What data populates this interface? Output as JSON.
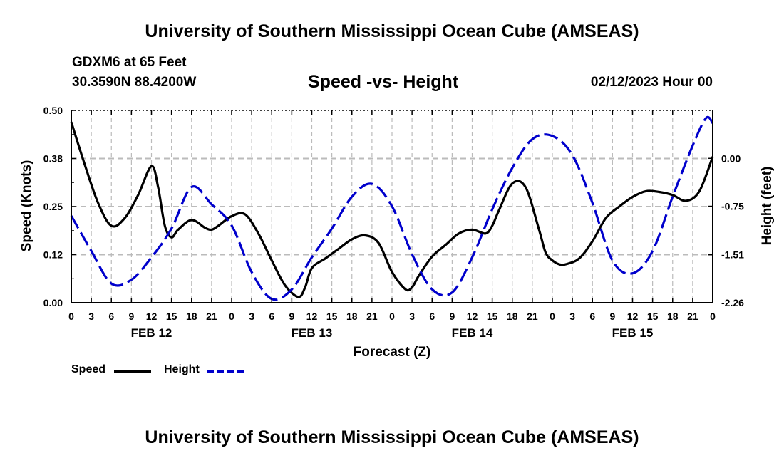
{
  "header": {
    "title": "University of Southern Mississippi Ocean Cube (AMSEAS)",
    "station": "GDXM6 at 65 Feet",
    "coords": "30.3590N  88.4200W",
    "subtitle": "Speed -vs- Height",
    "datetime": "02/12/2023 Hour 00"
  },
  "footer": {
    "title": "University of Southern Mississippi Ocean Cube (AMSEAS)"
  },
  "legend": {
    "speed": "Speed",
    "height": "Height"
  },
  "colors": {
    "speed": "#000000",
    "height": "#0000cc",
    "grid": "#bbbbbb"
  },
  "chart_data": {
    "type": "line",
    "title": "Speed -vs- Height",
    "xlabel": "Forecast (Z)",
    "ylabel": "Speed (Knots)",
    "y2label": "Height (feet)",
    "xlim": [
      0,
      96
    ],
    "ylim": [
      0,
      0.5
    ],
    "y2lim": [
      -2.26,
      0.75
    ],
    "yticks": [
      0.0,
      0.125,
      0.25,
      0.375,
      0.5
    ],
    "yticklabels": [
      "0.00",
      "0.12",
      "0.25",
      "0.38",
      "0.50"
    ],
    "y2ticks": [
      -2.26,
      -1.51,
      -0.75,
      0.0
    ],
    "y2ticklabels": [
      "-2.26",
      "-1.51",
      "-0.75",
      "0.00"
    ],
    "xticks": [
      0,
      3,
      6,
      9,
      12,
      15,
      18,
      21,
      24,
      27,
      30,
      33,
      36,
      39,
      42,
      45,
      48,
      51,
      54,
      57,
      60,
      63,
      66,
      69,
      72,
      75,
      78,
      81,
      84,
      87,
      90,
      93,
      96
    ],
    "xticklabels": [
      "0",
      "3",
      "6",
      "9",
      "12",
      "15",
      "18",
      "21",
      "0",
      "3",
      "6",
      "9",
      "12",
      "15",
      "18",
      "21",
      "0",
      "3",
      "6",
      "9",
      "12",
      "15",
      "18",
      "21",
      "0",
      "3",
      "6",
      "9",
      "12",
      "15",
      "18",
      "21",
      "0"
    ],
    "date_labels": [
      {
        "x": 12,
        "label": "FEB 12"
      },
      {
        "x": 36,
        "label": "FEB 13"
      },
      {
        "x": 60,
        "label": "FEB 14"
      },
      {
        "x": 84,
        "label": "FEB 15"
      }
    ],
    "grid": true,
    "series": [
      {
        "name": "Speed",
        "axis": "left",
        "style": "solid",
        "x": [
          0,
          2,
          4,
          6,
          8,
          10,
          12,
          13,
          14,
          15,
          16,
          18,
          20,
          21,
          22,
          24,
          26,
          28,
          30,
          32,
          34,
          35,
          36,
          38,
          40,
          42,
          44,
          46,
          48,
          50,
          51,
          52,
          54,
          56,
          58,
          60,
          62,
          63,
          64,
          66,
          68,
          70,
          71,
          72,
          73,
          74,
          76,
          78,
          80,
          82,
          84,
          86,
          88,
          90,
          92,
          94,
          96
        ],
        "values": [
          0.47,
          0.36,
          0.26,
          0.2,
          0.22,
          0.28,
          0.355,
          0.3,
          0.2,
          0.17,
          0.19,
          0.215,
          0.195,
          0.19,
          0.2,
          0.225,
          0.23,
          0.18,
          0.11,
          0.045,
          0.015,
          0.04,
          0.09,
          0.115,
          0.14,
          0.165,
          0.175,
          0.155,
          0.08,
          0.035,
          0.04,
          0.07,
          0.12,
          0.15,
          0.18,
          0.19,
          0.18,
          0.2,
          0.24,
          0.31,
          0.3,
          0.19,
          0.13,
          0.11,
          0.1,
          0.1,
          0.115,
          0.16,
          0.22,
          0.25,
          0.275,
          0.29,
          0.288,
          0.28,
          0.265,
          0.29,
          0.38
        ]
      },
      {
        "name": "Height",
        "axis": "right",
        "style": "dashed",
        "x": [
          0,
          3,
          6,
          9,
          12,
          15,
          18,
          21,
          24,
          27,
          30,
          33,
          36,
          39,
          42,
          45,
          48,
          51,
          54,
          57,
          60,
          63,
          66,
          69,
          72,
          75,
          78,
          81,
          84,
          87,
          90,
          93,
          95,
          96
        ],
        "values": [
          -0.9,
          -1.45,
          -1.96,
          -1.9,
          -1.55,
          -1.1,
          -0.45,
          -0.72,
          -1.05,
          -1.78,
          -2.2,
          -2.05,
          -1.55,
          -1.1,
          -0.6,
          -0.4,
          -0.75,
          -1.5,
          -2.05,
          -2.1,
          -1.55,
          -0.8,
          -0.15,
          0.3,
          0.35,
          0.05,
          -0.7,
          -1.6,
          -1.8,
          -1.45,
          -0.6,
          0.2,
          0.63,
          0.55
        ]
      }
    ]
  }
}
